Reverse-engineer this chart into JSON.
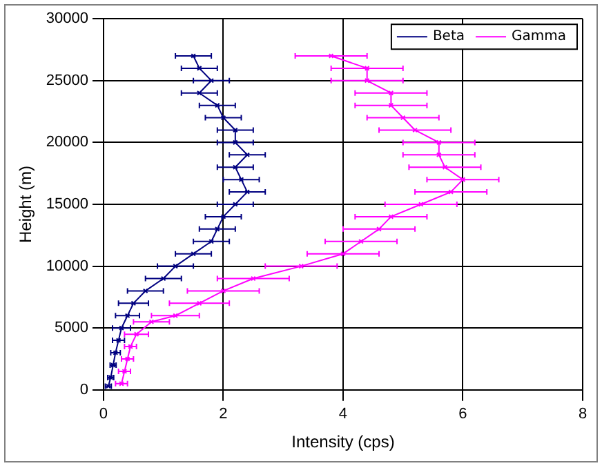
{
  "chart_data": {
    "type": "line",
    "xlabel": "Intensity (cps)",
    "ylabel": "Height (m)",
    "xlim": [
      0,
      8
    ],
    "xticks": [
      0,
      2,
      4,
      6,
      8
    ],
    "ylim": [
      0,
      30000
    ],
    "yticks": [
      0,
      5000,
      10000,
      15000,
      20000,
      25000,
      30000
    ],
    "grid": true,
    "legend": "top right",
    "marker": "cross",
    "line_style": "solid",
    "series": [
      {
        "name": "Beta",
        "color": "#000080",
        "x": [
          0.08,
          0.12,
          0.16,
          0.2,
          0.25,
          0.3,
          0.4,
          0.5,
          0.7,
          1.0,
          1.2,
          1.5,
          1.8,
          1.9,
          2.0,
          2.2,
          2.4,
          2.3,
          2.2,
          2.4,
          2.2,
          2.2,
          2.0,
          1.9,
          1.6,
          1.8,
          1.6,
          1.5
        ],
        "values": [
          300,
          1000,
          2000,
          3000,
          4000,
          5000,
          6000,
          7000,
          8000,
          9000,
          10000,
          11000,
          12000,
          13000,
          14000,
          15000,
          16000,
          17000,
          18000,
          19000,
          20000,
          21000,
          22000,
          23000,
          24000,
          25000,
          26000,
          27000
        ],
        "xerrors": [
          0.05,
          0.05,
          0.05,
          0.08,
          0.1,
          0.15,
          0.2,
          0.25,
          0.3,
          0.3,
          0.3,
          0.3,
          0.3,
          0.3,
          0.3,
          0.3,
          0.3,
          0.3,
          0.3,
          0.3,
          0.3,
          0.3,
          0.3,
          0.3,
          0.3,
          0.3,
          0.3,
          0.3
        ]
      },
      {
        "name": "Gamma",
        "color": "#ff00ff",
        "x": [
          0.3,
          0.35,
          0.4,
          0.45,
          0.55,
          0.8,
          1.2,
          1.6,
          2.0,
          2.5,
          3.3,
          4.0,
          4.3,
          4.6,
          4.8,
          5.3,
          5.8,
          6.0,
          5.7,
          5.6,
          5.6,
          5.2,
          5.0,
          4.8,
          4.8,
          4.4,
          4.4,
          3.8
        ],
        "values": [
          500,
          1500,
          2500,
          3500,
          4500,
          5500,
          6000,
          7000,
          8000,
          9000,
          10000,
          11000,
          12000,
          13000,
          14000,
          15000,
          16000,
          17000,
          18000,
          19000,
          20000,
          21000,
          22000,
          23000,
          24000,
          25000,
          26000,
          27000
        ],
        "xerrors": [
          0.1,
          0.1,
          0.1,
          0.1,
          0.2,
          0.3,
          0.4,
          0.5,
          0.6,
          0.6,
          0.6,
          0.6,
          0.6,
          0.6,
          0.6,
          0.6,
          0.6,
          0.6,
          0.6,
          0.6,
          0.6,
          0.6,
          0.6,
          0.6,
          0.6,
          0.6,
          0.6,
          0.6
        ]
      }
    ]
  }
}
